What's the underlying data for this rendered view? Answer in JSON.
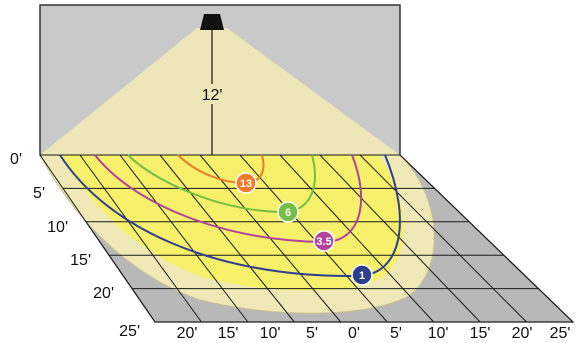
{
  "height_label": "12'",
  "depth_ticks": [
    "0'",
    "5'",
    "10'",
    "15'",
    "20'",
    "25'"
  ],
  "width_ticks": [
    "20'",
    "15'",
    "10'",
    "5'",
    "0'",
    "5'",
    "10'",
    "15'",
    "20'",
    "25'"
  ],
  "contours": [
    {
      "value": "13",
      "color": "#f07a28"
    },
    {
      "value": "6",
      "color": "#72bf44"
    },
    {
      "value": "3.5",
      "color": "#b0449c"
    },
    {
      "value": "1",
      "color": "#2e3f8f"
    }
  ],
  "colors": {
    "wall": "#c9c9c9",
    "floor": "#b8b8b8",
    "light_cone": "#ece6b8",
    "beam_outer": "#eee9b6",
    "beam_inner": "#f6f06a",
    "grid": "#1a1a1a",
    "fixture": "#111111"
  }
}
